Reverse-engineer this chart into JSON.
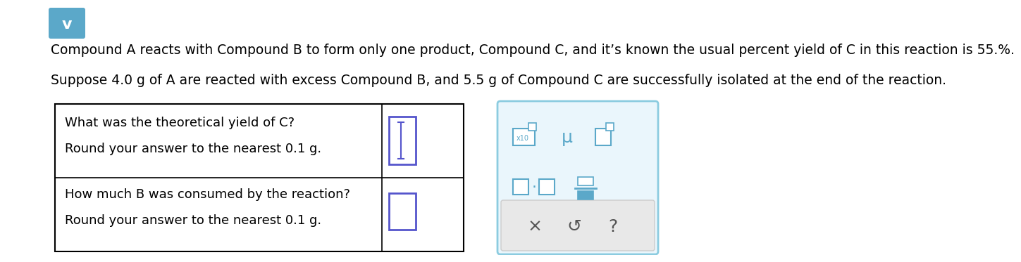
{
  "background_color": "#ffffff",
  "line1": "Compound A reacts with Compound B to form only one product, Compound C, and it’s known the usual percent yield of C in this reaction is 55.%.",
  "line2": "Suppose 4.0 g of A are reacted with excess Compound B, and 5.5 g of Compound C are successfully isolated at the end of the reaction.",
  "table_q1": "What was the theoretical yield of C?",
  "table_q1_sub": "Round your answer to the nearest 0.1 g.",
  "table_q2": "How much B was consumed by the reaction?",
  "table_q2_sub": "Round your answer to the nearest 0.1 g.",
  "text_color": "#000000",
  "font_size_main": 13.5,
  "font_size_table": 13,
  "icon_color": "#5ba8c9",
  "input_box_color_1": "#5555cc",
  "input_box_color_2": "#5555cc",
  "panel_bg": "#eaf6fc",
  "panel_border": "#8ccce0",
  "tool_color": "#5ba8c9",
  "btn_bg": "#e8e8e8",
  "btn_color": "#555555"
}
